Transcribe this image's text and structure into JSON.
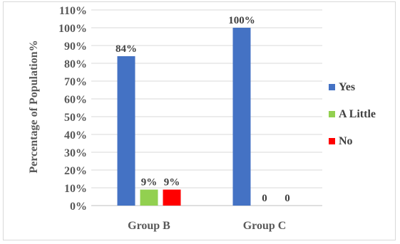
{
  "chart_data": {
    "type": "bar",
    "categories": [
      "Group B",
      "Group C"
    ],
    "series": [
      {
        "name": "Yes",
        "color": "#4472C4",
        "values": [
          84,
          100
        ],
        "labels": [
          "84%",
          "100%"
        ]
      },
      {
        "name": "A Little",
        "color": "#92D050",
        "values": [
          9,
          0
        ],
        "labels": [
          "9%",
          "0"
        ]
      },
      {
        "name": "No",
        "color": "#FF0000",
        "values": [
          9,
          0
        ],
        "labels": [
          "9%",
          "0"
        ]
      }
    ],
    "title": "",
    "xlabel": "",
    "ylabel": "Percentage of Population%",
    "ylim": [
      0,
      110
    ],
    "yticks": [
      "0%",
      "10%",
      "20%",
      "30%",
      "40%",
      "50%",
      "60%",
      "70%",
      "80%",
      "90%",
      "100%",
      "110%"
    ],
    "grid": true,
    "legend_position": "right"
  }
}
